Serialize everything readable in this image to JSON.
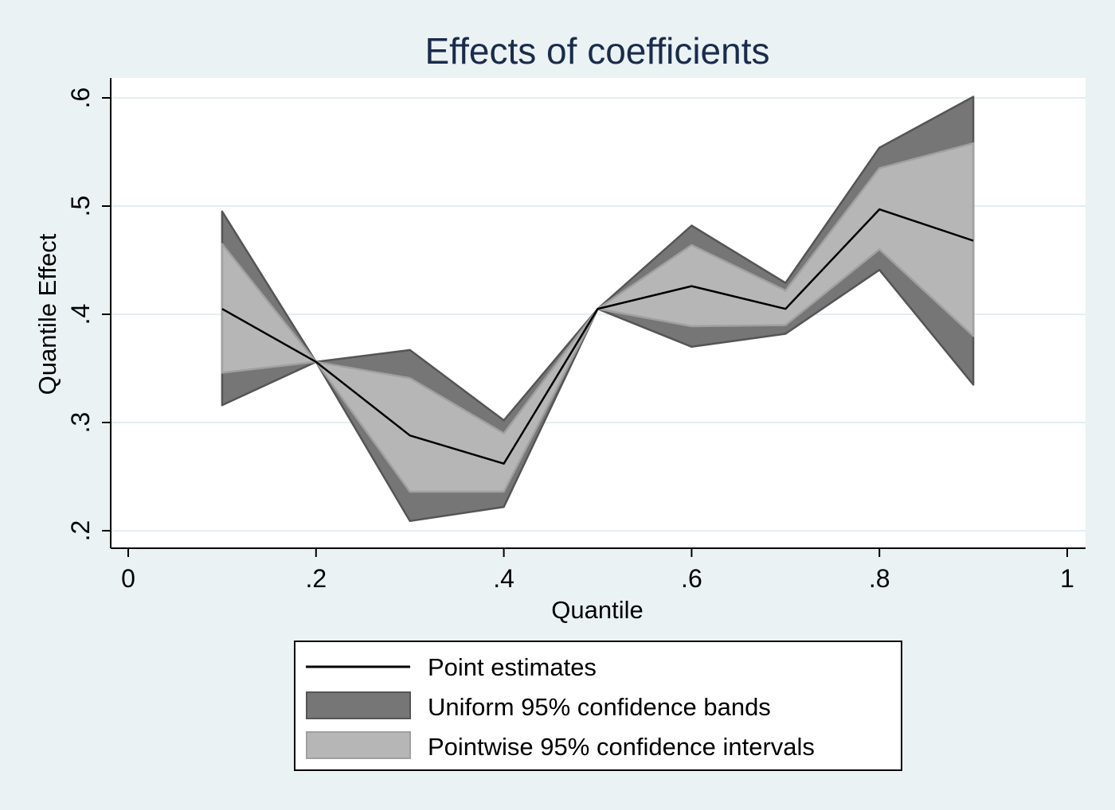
{
  "chart_data": {
    "type": "area",
    "title": "Effects of coefficients",
    "xlabel": "Quantile",
    "ylabel": "Quantile Effect",
    "xlim": [
      0,
      1
    ],
    "ylim": [
      0.2,
      0.6
    ],
    "x_ticks": [
      0,
      0.2,
      0.4,
      0.6,
      0.8,
      1
    ],
    "x_tick_labels": [
      "0",
      ".2",
      ".4",
      ".6",
      ".8",
      "1"
    ],
    "y_ticks": [
      0.2,
      0.3,
      0.4,
      0.5,
      0.6
    ],
    "y_tick_labels": [
      ".2",
      ".3",
      ".4",
      ".5",
      ".6"
    ],
    "grid": true,
    "legend_position": "bottom",
    "x": [
      0.1,
      0.2,
      0.3,
      0.4,
      0.5,
      0.6,
      0.7,
      0.8,
      0.9
    ],
    "series": [
      {
        "name": "Point estimates",
        "kind": "line",
        "color": "#000000",
        "values": [
          0.405,
          0.356,
          0.288,
          0.262,
          0.405,
          0.426,
          0.405,
          0.497,
          0.468
        ]
      },
      {
        "name": "Uniform 95% confidence bands",
        "kind": "band",
        "color": "#767676",
        "lower": [
          0.316,
          0.356,
          0.209,
          0.222,
          0.405,
          0.37,
          0.382,
          0.441,
          0.335
        ],
        "upper": [
          0.495,
          0.356,
          0.367,
          0.302,
          0.405,
          0.482,
          0.429,
          0.554,
          0.601
        ]
      },
      {
        "name": "Pointwise 95% confidence intervals",
        "kind": "band",
        "color": "#b6b6b6",
        "lower": [
          0.346,
          0.356,
          0.236,
          0.236,
          0.405,
          0.389,
          0.39,
          0.46,
          0.38
        ],
        "upper": [
          0.465,
          0.356,
          0.341,
          0.29,
          0.405,
          0.464,
          0.422,
          0.535,
          0.558
        ]
      }
    ],
    "colors": {
      "background": "#eaf2f3",
      "plot_area": "#ffffff",
      "grid": "#e4eef0",
      "title": "#1a2b4c",
      "uniform_band_edge": "#555555",
      "pointwise_band_edge": "#a0a0a0"
    }
  }
}
